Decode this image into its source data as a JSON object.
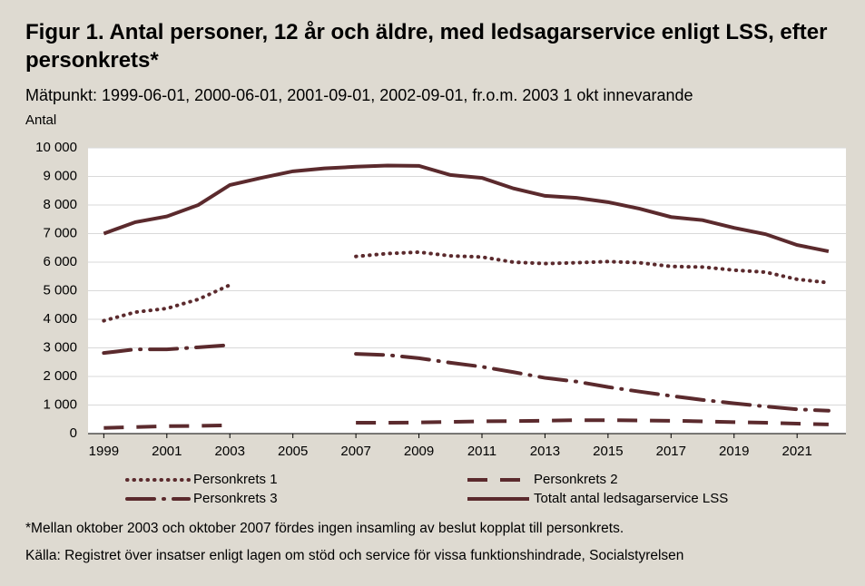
{
  "chart_data": {
    "type": "line",
    "title": "Figur 1. Antal personer, 12 år och äldre, med ledsagarservice enligt LSS, efter personkrets*",
    "subtitle": "Mätpunkt: 1999-06-01, 2000-06-01, 2001-09-01, 2002-09-01, fr.o.m. 2003 1 okt innevarande",
    "y_label": "Antal",
    "note": "*Mellan oktober 2003 och oktober 2007 fördes ingen insamling av beslut kopplat till personkrets.",
    "source": "Källa: Registret över insatser enligt lagen om stöd och service för vissa funktionshindrade, Socialstyrelsen",
    "x": [
      1999,
      2000,
      2001,
      2002,
      2003,
      2004,
      2005,
      2006,
      2007,
      2008,
      2009,
      2010,
      2011,
      2012,
      2013,
      2014,
      2015,
      2016,
      2017,
      2018,
      2019,
      2020,
      2021,
      2022
    ],
    "xlim": [
      1998.5,
      2022.55
    ],
    "xticks": [
      1999,
      2001,
      2003,
      2005,
      2007,
      2009,
      2011,
      2013,
      2015,
      2017,
      2019,
      2021
    ],
    "ylim": [
      0,
      10000
    ],
    "yticks": [
      0,
      {
        "value": 1000,
        "label": "1 000"
      },
      {
        "value": 2000,
        "label": "2 000"
      },
      {
        "value": 3000,
        "label": "3 000"
      },
      {
        "value": 4000,
        "label": "4 000"
      },
      {
        "value": 5000,
        "label": "5 000"
      },
      {
        "value": 6000,
        "label": "6 000"
      },
      {
        "value": 7000,
        "label": "7 000"
      },
      {
        "value": 8000,
        "label": "8 000"
      },
      {
        "value": 9000,
        "label": "9 000"
      },
      {
        "value": 10000,
        "label": "10 000"
      }
    ],
    "grid": true,
    "legend": "bottom",
    "series": [
      {
        "name": "Personkrets 1",
        "color": "#5b2a2d",
        "style": "dotted",
        "values": [
          3950,
          4250,
          4380,
          4700,
          5200,
          null,
          null,
          null,
          6200,
          6300,
          6350,
          6220,
          6180,
          6000,
          5950,
          5980,
          6020,
          5980,
          5850,
          5830,
          5720,
          5650,
          5400,
          5280
        ]
      },
      {
        "name": "Personkrets 2",
        "color": "#5b2a2d",
        "style": "dashed",
        "values": [
          200,
          230,
          260,
          270,
          290,
          null,
          null,
          null,
          380,
          380,
          390,
          410,
          430,
          440,
          450,
          470,
          470,
          460,
          450,
          430,
          400,
          380,
          350,
          320
        ]
      },
      {
        "name": "Personkrets 3",
        "color": "#5b2a2d",
        "style": "dashdot",
        "values": [
          2820,
          2950,
          2950,
          3020,
          3100,
          null,
          null,
          null,
          2790,
          2750,
          2640,
          2480,
          2340,
          2150,
          1950,
          1820,
          1630,
          1470,
          1320,
          1180,
          1060,
          950,
          850,
          800
        ]
      },
      {
        "name": "Totalt antal ledsagarservice LSS",
        "color": "#5b2a2d",
        "style": "solid",
        "values": [
          7000,
          7400,
          7600,
          8000,
          8700,
          8950,
          9180,
          9280,
          9340,
          9380,
          9370,
          9050,
          8950,
          8580,
          8320,
          8250,
          8100,
          7870,
          7580,
          7470,
          7200,
          6980,
          6600,
          6380
        ]
      }
    ]
  }
}
